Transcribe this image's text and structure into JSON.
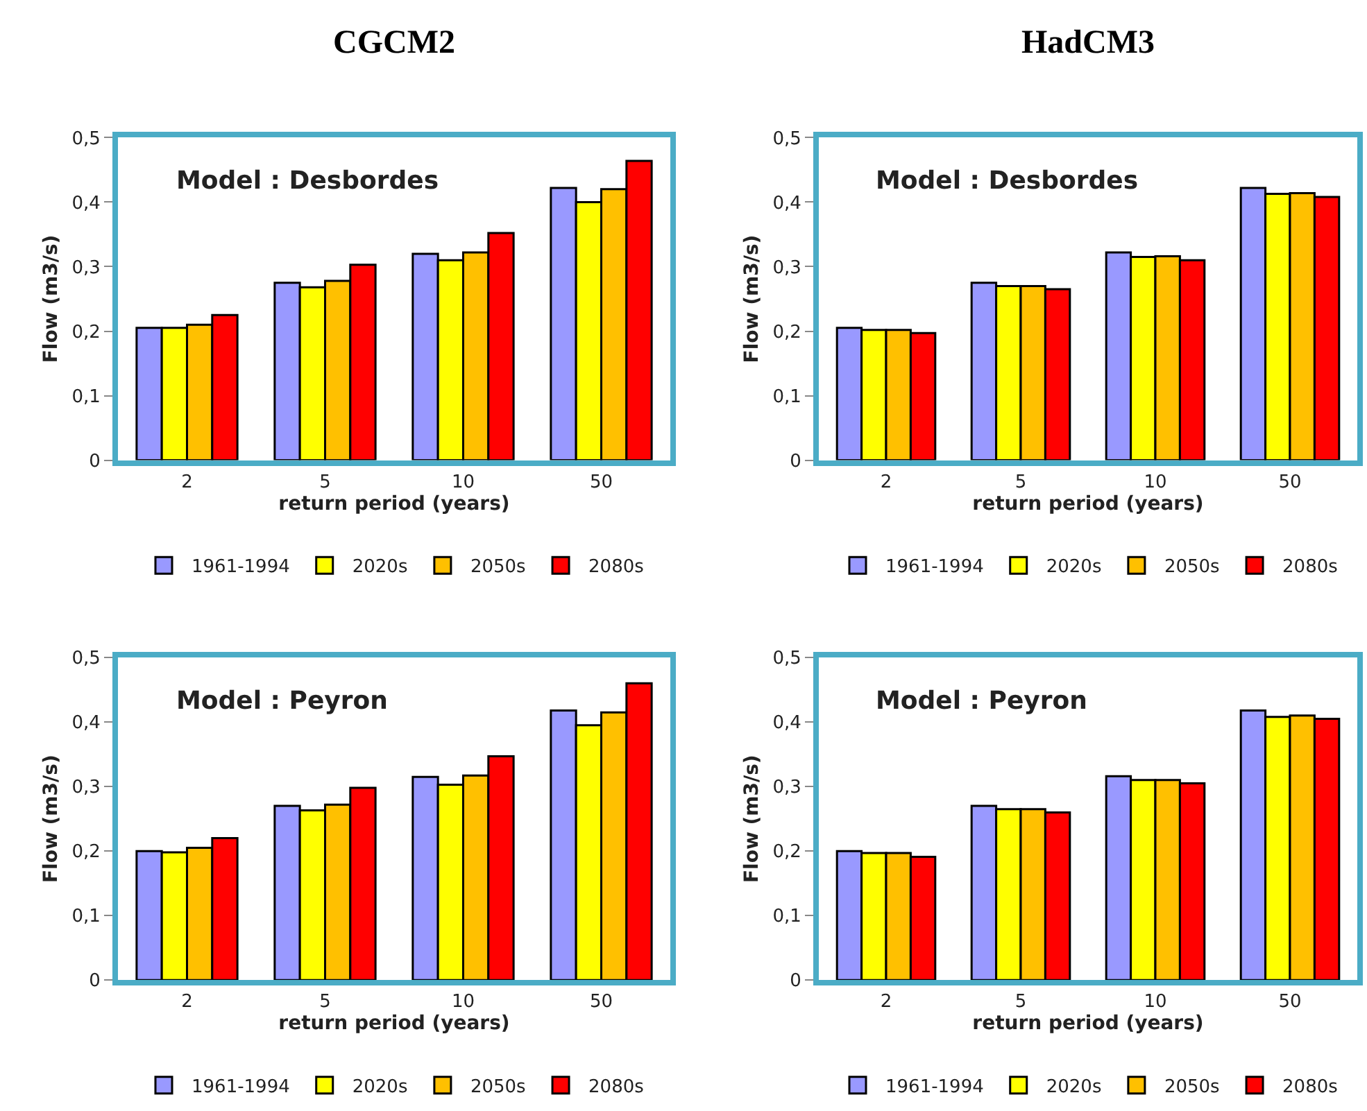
{
  "chart_data": [
    {
      "type": "bar",
      "title": "CGCM2",
      "xlabel": "return period (years)",
      "ylabel": "Flow (m3/s)",
      "annotations": [
        "Model : Desbordes"
      ],
      "categories": [
        "2",
        "5",
        "10",
        "50"
      ],
      "ylim": [
        0,
        0.5
      ],
      "yticks": [
        0,
        {
          "value": 0.1,
          "label": "0,1"
        },
        {
          "value": 0.2,
          "label": "0,2"
        },
        {
          "value": 0.3,
          "label": "0,3"
        },
        {
          "value": 0.4,
          "label": "0,4"
        },
        {
          "value": 0.5,
          "label": "0,5"
        }
      ],
      "grid": false,
      "legend": "bottom",
      "series": [
        {
          "name": "1961-1994",
          "color": "#9999ff",
          "values": [
            0.205,
            0.275,
            0.32,
            0.422
          ]
        },
        {
          "name": "2020s",
          "color": "#ffff00",
          "values": [
            0.205,
            0.268,
            0.31,
            0.4
          ]
        },
        {
          "name": "2050s",
          "color": "#ffc000",
          "values": [
            0.21,
            0.278,
            0.322,
            0.42
          ]
        },
        {
          "name": "2080s",
          "color": "#ff0000",
          "values": [
            0.225,
            0.303,
            0.352,
            0.464
          ]
        }
      ]
    },
    {
      "type": "bar",
      "title": "HadCM3",
      "xlabel": "return period (years)",
      "ylabel": "Flow (m3/s)",
      "annotations": [
        "Model : Desbordes"
      ],
      "categories": [
        "2",
        "5",
        "10",
        "50"
      ],
      "ylim": [
        0,
        0.5
      ],
      "yticks": [
        0,
        {
          "value": 0.1,
          "label": "0,1"
        },
        {
          "value": 0.2,
          "label": "0,2"
        },
        {
          "value": 0.3,
          "label": "0,3"
        },
        {
          "value": 0.4,
          "label": "0,4"
        },
        {
          "value": 0.5,
          "label": "0,5"
        }
      ],
      "grid": false,
      "legend": "bottom",
      "series": [
        {
          "name": "1961-1994",
          "color": "#9999ff",
          "values": [
            0.205,
            0.275,
            0.322,
            0.422
          ]
        },
        {
          "name": "2020s",
          "color": "#ffff00",
          "values": [
            0.202,
            0.27,
            0.315,
            0.413
          ]
        },
        {
          "name": "2050s",
          "color": "#ffc000",
          "values": [
            0.202,
            0.27,
            0.316,
            0.414
          ]
        },
        {
          "name": "2080s",
          "color": "#ff0000",
          "values": [
            0.197,
            0.265,
            0.31,
            0.408
          ]
        }
      ]
    },
    {
      "type": "bar",
      "xlabel": "return period (years)",
      "ylabel": "Flow (m3/s)",
      "annotations": [
        "Model : Peyron"
      ],
      "categories": [
        "2",
        "5",
        "10",
        "50"
      ],
      "ylim": [
        0,
        0.5
      ],
      "yticks": [
        0,
        {
          "value": 0.1,
          "label": "0,1"
        },
        {
          "value": 0.2,
          "label": "0,2"
        },
        {
          "value": 0.3,
          "label": "0,3"
        },
        {
          "value": 0.4,
          "label": "0,4"
        },
        {
          "value": 0.5,
          "label": "0,5"
        }
      ],
      "grid": false,
      "legend": "bottom",
      "series": [
        {
          "name": "1961-1994",
          "color": "#9999ff",
          "values": [
            0.2,
            0.27,
            0.315,
            0.418
          ]
        },
        {
          "name": "2020s",
          "color": "#ffff00",
          "values": [
            0.198,
            0.263,
            0.303,
            0.395
          ]
        },
        {
          "name": "2050s",
          "color": "#ffc000",
          "values": [
            0.205,
            0.272,
            0.317,
            0.415
          ]
        },
        {
          "name": "2080s",
          "color": "#ff0000",
          "values": [
            0.22,
            0.298,
            0.347,
            0.46
          ]
        }
      ]
    },
    {
      "type": "bar",
      "xlabel": "return period (years)",
      "ylabel": "Flow (m3/s)",
      "annotations": [
        "Model : Peyron"
      ],
      "categories": [
        "2",
        "5",
        "10",
        "50"
      ],
      "ylim": [
        0,
        0.5
      ],
      "yticks": [
        0,
        {
          "value": 0.1,
          "label": "0,1"
        },
        {
          "value": 0.2,
          "label": "0,2"
        },
        {
          "value": 0.3,
          "label": "0,3"
        },
        {
          "value": 0.4,
          "label": "0,4"
        },
        {
          "value": 0.5,
          "label": "0,5"
        }
      ],
      "grid": false,
      "legend": "bottom",
      "series": [
        {
          "name": "1961-1994",
          "color": "#9999ff",
          "values": [
            0.2,
            0.27,
            0.316,
            0.418
          ]
        },
        {
          "name": "2020s",
          "color": "#ffff00",
          "values": [
            0.197,
            0.265,
            0.31,
            0.408
          ]
        },
        {
          "name": "2050s",
          "color": "#ffc000",
          "values": [
            0.197,
            0.265,
            0.31,
            0.41
          ]
        },
        {
          "name": "2080s",
          "color": "#ff0000",
          "values": [
            0.191,
            0.26,
            0.305,
            0.405
          ]
        }
      ]
    }
  ]
}
